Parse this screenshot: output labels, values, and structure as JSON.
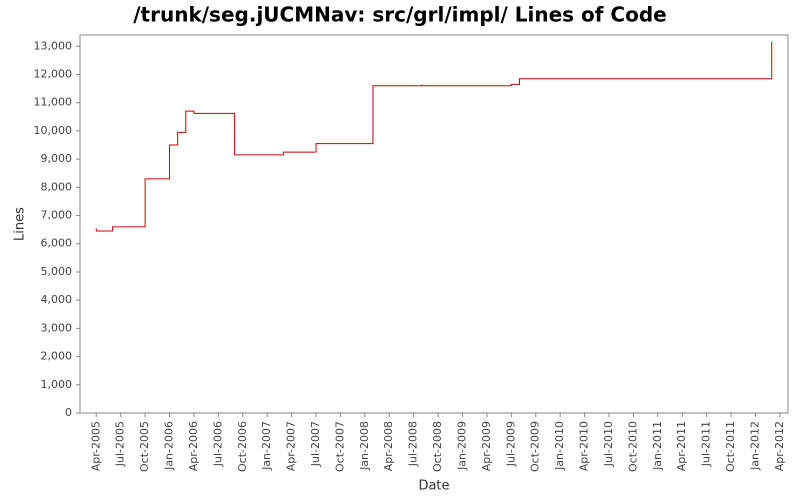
{
  "chart_data": {
    "type": "line",
    "title": "/trunk/seg.jUCMNav: src/grl/impl/ Lines of Code",
    "x_label": "Date",
    "y_label": "Lines",
    "x": [
      "2005-04",
      "2005-04",
      "2005-06",
      "2005-06",
      "2005-10",
      "2005-10",
      "2006-01",
      "2006-01",
      "2006-02",
      "2006-02",
      "2006-03",
      "2006-03",
      "2006-04",
      "2006-04",
      "2006-09",
      "2006-09",
      "2007-03",
      "2007-03",
      "2007-07",
      "2007-07",
      "2008-02",
      "2008-02",
      "2008-08",
      "2008-08",
      "2008-08",
      "2009-07",
      "2009-07",
      "2009-08",
      "2009-08",
      "2012-03",
      "2012-03"
    ],
    "series": [
      {
        "name": "Lines",
        "color": "#cc0000",
        "values": [
          6550,
          6450,
          6450,
          6600,
          6600,
          8300,
          8300,
          9500,
          9500,
          9950,
          9950,
          10700,
          10700,
          10620,
          10620,
          9150,
          9150,
          9250,
          9250,
          9550,
          9550,
          11600,
          11600,
          11650,
          11600,
          11600,
          11650,
          11650,
          11850,
          11850,
          13150
        ]
      }
    ],
    "xlim": [
      "2005-02",
      "2012-05"
    ],
    "xticks": [
      {
        "value": "2005-04",
        "label": "Apr-2005"
      },
      {
        "value": "2005-07",
        "label": "Jul-2005"
      },
      {
        "value": "2005-10",
        "label": "Oct-2005"
      },
      {
        "value": "2006-01",
        "label": "Jan-2006"
      },
      {
        "value": "2006-04",
        "label": "Apr-2006"
      },
      {
        "value": "2006-07",
        "label": "Jul-2006"
      },
      {
        "value": "2006-10",
        "label": "Oct-2006"
      },
      {
        "value": "2007-01",
        "label": "Jan-2007"
      },
      {
        "value": "2007-04",
        "label": "Apr-2007"
      },
      {
        "value": "2007-07",
        "label": "Jul-2007"
      },
      {
        "value": "2007-10",
        "label": "Oct-2007"
      },
      {
        "value": "2008-01",
        "label": "Jan-2008"
      },
      {
        "value": "2008-04",
        "label": "Apr-2008"
      },
      {
        "value": "2008-07",
        "label": "Jul-2008"
      },
      {
        "value": "2008-10",
        "label": "Oct-2008"
      },
      {
        "value": "2009-01",
        "label": "Jan-2009"
      },
      {
        "value": "2009-04",
        "label": "Apr-2009"
      },
      {
        "value": "2009-07",
        "label": "Jul-2009"
      },
      {
        "value": "2009-10",
        "label": "Oct-2009"
      },
      {
        "value": "2010-01",
        "label": "Jan-2010"
      },
      {
        "value": "2010-04",
        "label": "Apr-2010"
      },
      {
        "value": "2010-07",
        "label": "Jul-2010"
      },
      {
        "value": "2010-10",
        "label": "Oct-2010"
      },
      {
        "value": "2011-01",
        "label": "Jan-2011"
      },
      {
        "value": "2011-04",
        "label": "Apr-2011"
      },
      {
        "value": "2011-07",
        "label": "Jul-2011"
      },
      {
        "value": "2011-10",
        "label": "Oct-2011"
      },
      {
        "value": "2012-01",
        "label": "Jan-2012"
      },
      {
        "value": "2012-04",
        "label": "Apr-2012"
      }
    ],
    "ylim": [
      0,
      13400
    ],
    "yticks": [
      0,
      {
        "value": 1000,
        "label": "1,000"
      },
      {
        "value": 2000,
        "label": "2,000"
      },
      {
        "value": 3000,
        "label": "3,000"
      },
      {
        "value": 4000,
        "label": "4,000"
      },
      {
        "value": 5000,
        "label": "5,000"
      },
      {
        "value": 6000,
        "label": "6,000"
      },
      {
        "value": 7000,
        "label": "7,000"
      },
      {
        "value": 8000,
        "label": "8,000"
      },
      {
        "value": 9000,
        "label": "9,000"
      },
      {
        "value": 10000,
        "label": "10,000"
      },
      {
        "value": 11000,
        "label": "11,000"
      },
      {
        "value": 12000,
        "label": "12,000"
      },
      {
        "value": 13000,
        "label": "13,000"
      }
    ]
  }
}
